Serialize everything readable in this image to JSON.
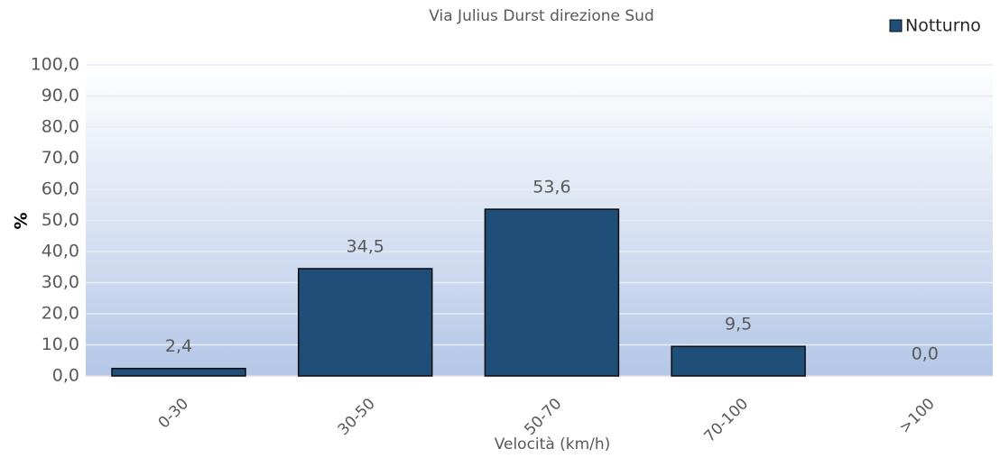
{
  "chart_data": {
    "type": "bar",
    "title": "Via Julius Durst direzione  Sud",
    "x_label": "Velocità (km/h)",
    "y_label": "%",
    "categories": [
      "0-30",
      "30-50",
      "50-70",
      "70-100",
      ">100"
    ],
    "series": [
      {
        "name": "Notturno",
        "color": "#1f4e79",
        "values": [
          2.4,
          34.5,
          53.6,
          9.5,
          0.0
        ],
        "value_labels": [
          "2,4",
          "34,5",
          "53,6",
          "9,5",
          "0,0"
        ]
      }
    ],
    "ylim": [
      0,
      100
    ],
    "yticks": [
      {
        "value": 0,
        "label": "0,0"
      },
      {
        "value": 10,
        "label": "10,0"
      },
      {
        "value": 20,
        "label": "20,0"
      },
      {
        "value": 30,
        "label": "30,0"
      },
      {
        "value": 40,
        "label": "40,0"
      },
      {
        "value": 50,
        "label": "50,0"
      },
      {
        "value": 60,
        "label": "60,0"
      },
      {
        "value": 70,
        "label": "70,0"
      },
      {
        "value": 80,
        "label": "80,0"
      },
      {
        "value": 90,
        "label": "90,0"
      },
      {
        "value": 100,
        "label": "100,0"
      }
    ],
    "grid": true,
    "legend": "top-right"
  }
}
